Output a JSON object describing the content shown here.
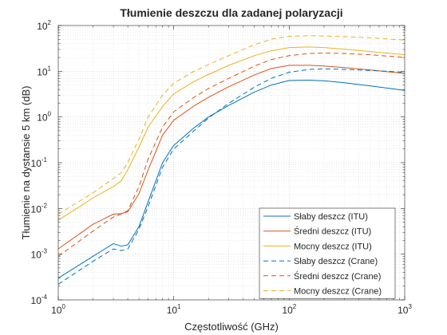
{
  "chart_data": {
    "type": "line",
    "title": "Tłumienie deszczu dla zadanej polaryzacji",
    "xlabel": "Częstotliwość (GHz)",
    "ylabel": "Tłumienie na dystansie 5 km (dB)",
    "xscale": "log",
    "yscale": "log",
    "xlim": [
      1,
      1000
    ],
    "ylim": [
      0.0001,
      100
    ],
    "grid": "major and minor, dotted",
    "legend_position": "bottom-right",
    "x_ticks": [
      {
        "value": 1,
        "base": "10",
        "exp": "0"
      },
      {
        "value": 10,
        "base": "10",
        "exp": "1"
      },
      {
        "value": 100,
        "base": "10",
        "exp": "2"
      },
      {
        "value": 1000,
        "base": "10",
        "exp": "3"
      }
    ],
    "y_ticks": [
      {
        "value": 0.0001,
        "base": "10",
        "exp": "-4"
      },
      {
        "value": 0.001,
        "base": "10",
        "exp": "-3"
      },
      {
        "value": 0.01,
        "base": "10",
        "exp": "-2"
      },
      {
        "value": 0.1,
        "base": "10",
        "exp": "-1"
      },
      {
        "value": 1,
        "base": "10",
        "exp": "0"
      },
      {
        "value": 10,
        "base": "10",
        "exp": "1"
      },
      {
        "value": 100,
        "base": "10",
        "exp": "2"
      }
    ],
    "series": [
      {
        "name": "Słaby deszcz (ITU)",
        "color": "#0072BD",
        "dash": "solid",
        "x": [
          1,
          2,
          3,
          3.5,
          4,
          5,
          6,
          8,
          10,
          15,
          20,
          30,
          50,
          70,
          100,
          150,
          200,
          300,
          500,
          700,
          1000
        ],
        "y": [
          0.0003,
          0.0009,
          0.0017,
          0.0015,
          0.0016,
          0.004,
          0.014,
          0.1,
          0.24,
          0.58,
          1.0,
          1.8,
          3.5,
          5.0,
          6.3,
          6.4,
          6.2,
          5.6,
          4.8,
          4.3,
          3.8
        ]
      },
      {
        "name": "Średni deszcz (ITU)",
        "color": "#D95319",
        "dash": "solid",
        "x": [
          1,
          2,
          3,
          3.5,
          4,
          5,
          6,
          8,
          10,
          15,
          20,
          30,
          50,
          70,
          100,
          150,
          200,
          300,
          500,
          700,
          1000
        ],
        "y": [
          0.0013,
          0.0045,
          0.0075,
          0.0077,
          0.0085,
          0.021,
          0.07,
          0.4,
          0.85,
          1.75,
          2.7,
          4.6,
          8.3,
          11.5,
          13.5,
          13.5,
          13.0,
          12.0,
          10.7,
          9.8,
          9.0
        ]
      },
      {
        "name": "Mocny deszcz (ITU)",
        "color": "#EDB120",
        "dash": "solid",
        "x": [
          1,
          2,
          3,
          3.5,
          4,
          5,
          6,
          8,
          10,
          15,
          20,
          30,
          50,
          70,
          100,
          150,
          200,
          300,
          500,
          700,
          1000
        ],
        "y": [
          0.0055,
          0.017,
          0.03,
          0.04,
          0.07,
          0.22,
          0.6,
          1.7,
          3.2,
          6.0,
          8.5,
          13.5,
          22.0,
          28.0,
          33.0,
          34.0,
          33.0,
          30.5,
          27.0,
          25.0,
          23.0
        ]
      },
      {
        "name": "Słaby deszcz (Crane)",
        "color": "#0072BD",
        "dash": "dashed",
        "x": [
          1,
          2,
          3,
          3.5,
          4,
          5,
          6,
          8,
          10,
          15,
          20,
          30,
          50,
          70,
          100,
          150,
          200,
          300,
          500,
          700,
          1000
        ],
        "y": [
          0.00022,
          0.0007,
          0.0013,
          0.0012,
          0.0013,
          0.0035,
          0.011,
          0.08,
          0.2,
          0.5,
          0.95,
          2.0,
          4.5,
          7.0,
          9.5,
          11.0,
          11.3,
          11.0,
          10.4,
          10.0,
          9.5
        ]
      },
      {
        "name": "Średni deszcz (Crane)",
        "color": "#D95319",
        "dash": "dashed",
        "x": [
          1,
          2,
          3,
          3.5,
          4,
          5,
          6,
          8,
          10,
          15,
          20,
          30,
          50,
          70,
          100,
          150,
          200,
          300,
          500,
          700,
          1000
        ],
        "y": [
          0.0009,
          0.0032,
          0.0065,
          0.0075,
          0.009,
          0.03,
          0.12,
          0.6,
          1.3,
          2.7,
          4.2,
          7.0,
          13.0,
          18.0,
          22.0,
          24.5,
          25.0,
          24.5,
          23.0,
          21.5,
          20.0
        ]
      },
      {
        "name": "Mocny deszcz (Crane)",
        "color": "#EDB120",
        "dash": "dashed",
        "x": [
          1,
          2,
          3,
          3.5,
          4,
          5,
          6,
          8,
          10,
          15,
          20,
          30,
          50,
          70,
          100,
          150,
          200,
          300,
          500,
          700,
          1000
        ],
        "y": [
          0.0075,
          0.022,
          0.045,
          0.06,
          0.1,
          0.33,
          1.0,
          3.0,
          5.5,
          10.0,
          14.0,
          22.0,
          38.0,
          50.0,
          58.0,
          60.0,
          59.0,
          57.0,
          54.0,
          51.0,
          48.0
        ]
      }
    ]
  }
}
